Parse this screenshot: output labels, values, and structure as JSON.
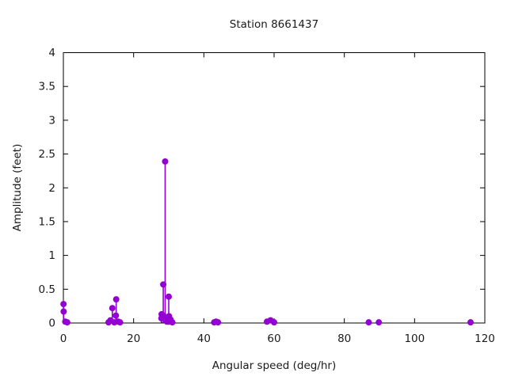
{
  "chart_data": {
    "type": "stem",
    "title": "Station 8661437",
    "xlabel": "Angular speed (deg/hr)",
    "ylabel": "Amplitude (feet)",
    "xlim": [
      0,
      120
    ],
    "ylim": [
      0,
      4
    ],
    "xticks": {
      "values": [
        0,
        20,
        40,
        60,
        80,
        100,
        120
      ],
      "labels": [
        "0",
        "20",
        "40",
        "60",
        "80",
        "100",
        "120"
      ]
    },
    "yticks": {
      "values": [
        0,
        0.5,
        1,
        1.5,
        2,
        2.5,
        3,
        3.5,
        4
      ],
      "labels": [
        "0",
        "0.5",
        "1",
        "1.5",
        "2",
        "2.5",
        "3",
        "3.5",
        "4"
      ]
    },
    "grid": false,
    "legend": false,
    "colors": {
      "marker": "#9400d3",
      "axis": "#000000",
      "background": "#ffffff"
    },
    "points": [
      [
        0.04,
        0.28
      ],
      [
        0.08,
        0.17
      ],
      [
        0.54,
        0.02
      ],
      [
        1.1,
        0.01
      ],
      [
        12.85,
        0.01
      ],
      [
        13.4,
        0.04
      ],
      [
        13.94,
        0.22
      ],
      [
        14.5,
        0.01
      ],
      [
        14.96,
        0.11
      ],
      [
        15.04,
        0.35
      ],
      [
        15.59,
        0.02
      ],
      [
        16.14,
        0.01
      ],
      [
        27.9,
        0.07
      ],
      [
        27.97,
        0.13
      ],
      [
        28.44,
        0.57
      ],
      [
        28.51,
        0.11
      ],
      [
        28.98,
        2.39
      ],
      [
        29.46,
        0.02
      ],
      [
        29.53,
        0.07
      ],
      [
        29.96,
        0.02
      ],
      [
        30.0,
        0.39
      ],
      [
        30.08,
        0.1
      ],
      [
        30.54,
        0.05
      ],
      [
        31.02,
        0.01
      ],
      [
        42.93,
        0.01
      ],
      [
        43.48,
        0.02
      ],
      [
        44.03,
        0.01
      ],
      [
        57.97,
        0.02
      ],
      [
        58.98,
        0.04
      ],
      [
        60.0,
        0.01
      ],
      [
        86.95,
        0.01
      ],
      [
        89.82,
        0.01
      ],
      [
        115.94,
        0.01
      ]
    ]
  }
}
